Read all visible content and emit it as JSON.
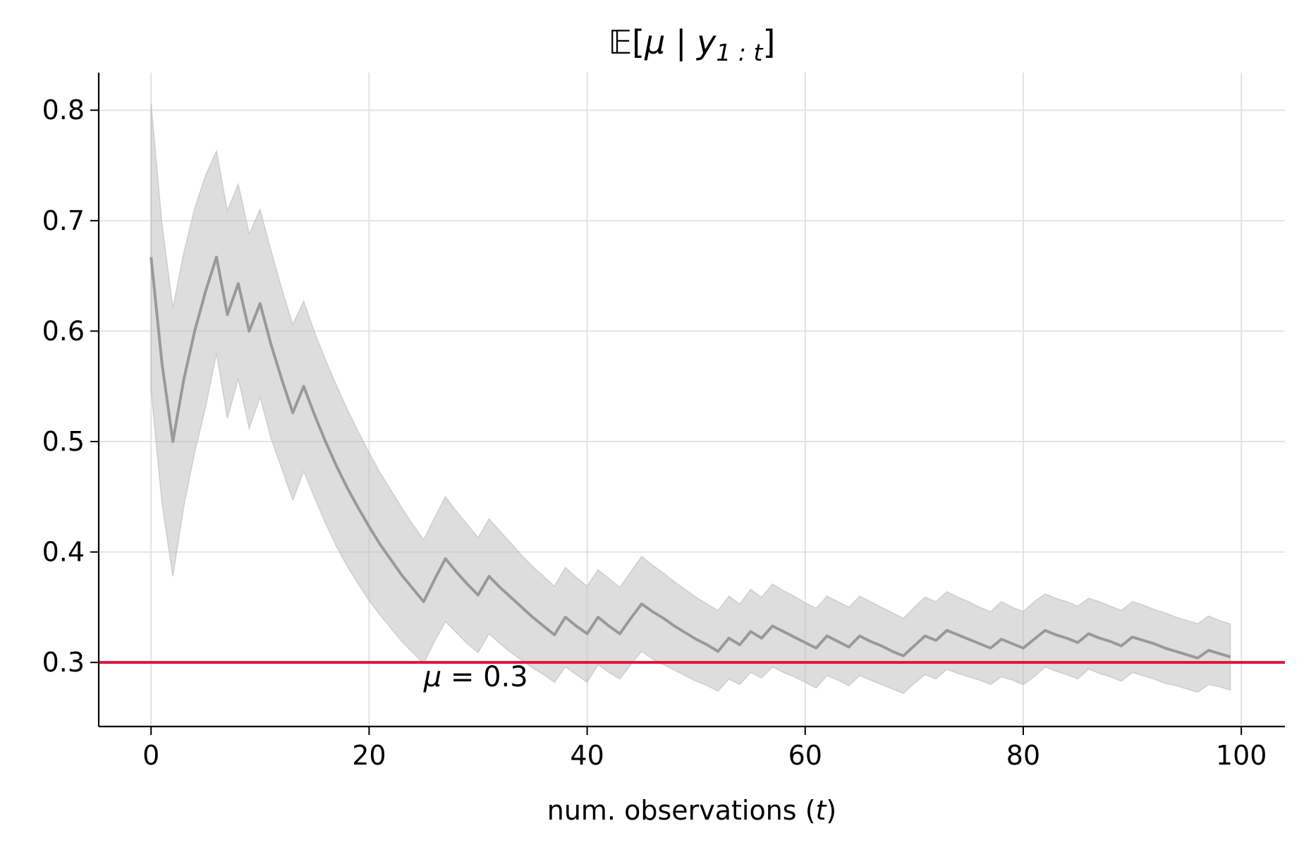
{
  "chart_data": {
    "type": "line",
    "title": {
      "prefix": "𝔼[",
      "mu": "μ",
      "bar": " | ",
      "y": "y",
      "sub": "1 : t",
      "suffix": "]"
    },
    "xlabel": {
      "text": "num. observations (",
      "var": "t",
      "close": ")"
    },
    "ylabel": "",
    "xlim": [
      -4.8,
      104
    ],
    "ylim": [
      0.242,
      0.834
    ],
    "xticks": [
      0,
      20,
      40,
      60,
      80,
      100
    ],
    "yticks": [
      0.3,
      0.4,
      0.5,
      0.6,
      0.7,
      0.8
    ],
    "xtick_labels": [
      "0",
      "20",
      "40",
      "60",
      "80",
      "100"
    ],
    "ytick_labels": [
      "0.3",
      "0.4",
      "0.5",
      "0.6",
      "0.7",
      "0.8"
    ],
    "grid": true,
    "legend": "none",
    "series": [
      {
        "kind": "mean",
        "color": "#999999",
        "x": [
          0,
          1,
          2,
          3,
          4,
          5,
          6,
          7,
          8,
          9,
          10,
          11,
          12,
          13,
          14,
          15,
          16,
          17,
          18,
          19,
          20,
          21,
          22,
          23,
          24,
          25,
          26,
          27,
          28,
          29,
          30,
          31,
          32,
          33,
          34,
          35,
          36,
          37,
          38,
          39,
          40,
          41,
          42,
          43,
          44,
          45,
          46,
          47,
          48,
          49,
          50,
          51,
          52,
          53,
          54,
          55,
          56,
          57,
          58,
          59,
          60,
          61,
          62,
          63,
          64,
          65,
          66,
          67,
          68,
          69,
          70,
          71,
          72,
          73,
          74,
          75,
          76,
          77,
          78,
          79,
          80,
          81,
          82,
          83,
          84,
          85,
          86,
          87,
          88,
          89,
          90,
          91,
          92,
          93,
          94,
          95,
          96,
          97,
          98,
          99
        ],
        "y": [
          0.667,
          0.571,
          0.5,
          0.556,
          0.6,
          0.636,
          0.667,
          0.615,
          0.643,
          0.6,
          0.625,
          0.588,
          0.556,
          0.526,
          0.55,
          0.524,
          0.5,
          0.478,
          0.458,
          0.44,
          0.423,
          0.407,
          0.393,
          0.379,
          0.367,
          0.355,
          0.375,
          0.394,
          0.382,
          0.371,
          0.361,
          0.378,
          0.368,
          0.359,
          0.35,
          0.341,
          0.333,
          0.325,
          0.341,
          0.333,
          0.326,
          0.341,
          0.333,
          0.326,
          0.34,
          0.353,
          0.346,
          0.34,
          0.333,
          0.327,
          0.321,
          0.316,
          0.31,
          0.322,
          0.316,
          0.328,
          0.322,
          0.333,
          0.328,
          0.323,
          0.318,
          0.313,
          0.324,
          0.319,
          0.314,
          0.324,
          0.319,
          0.315,
          0.31,
          0.306,
          0.315,
          0.324,
          0.32,
          0.329,
          0.325,
          0.321,
          0.317,
          0.313,
          0.321,
          0.317,
          0.313,
          0.321,
          0.329,
          0.325,
          0.322,
          0.318,
          0.326,
          0.322,
          0.319,
          0.315,
          0.323,
          0.32,
          0.317,
          0.313,
          0.31,
          0.307,
          0.304,
          0.311,
          0.308,
          0.305
        ]
      },
      {
        "kind": "band",
        "color": "#bbbbbb",
        "x": [
          0,
          1,
          2,
          3,
          4,
          5,
          6,
          7,
          8,
          9,
          10,
          11,
          12,
          13,
          14,
          15,
          16,
          17,
          18,
          19,
          20,
          21,
          22,
          23,
          24,
          25,
          26,
          27,
          28,
          29,
          30,
          31,
          32,
          33,
          34,
          35,
          36,
          37,
          38,
          39,
          40,
          41,
          42,
          43,
          44,
          45,
          46,
          47,
          48,
          49,
          50,
          51,
          52,
          53,
          54,
          55,
          56,
          57,
          58,
          59,
          60,
          61,
          62,
          63,
          64,
          65,
          66,
          67,
          68,
          69,
          70,
          71,
          72,
          73,
          74,
          75,
          76,
          77,
          78,
          79,
          80,
          81,
          82,
          83,
          84,
          85,
          86,
          87,
          88,
          89,
          90,
          91,
          92,
          93,
          94,
          95,
          96,
          97,
          98,
          99
        ],
        "upper": [
          0.806,
          0.697,
          0.621,
          0.671,
          0.711,
          0.741,
          0.763,
          0.709,
          0.733,
          0.688,
          0.71,
          0.673,
          0.638,
          0.606,
          0.627,
          0.599,
          0.574,
          0.551,
          0.529,
          0.509,
          0.49,
          0.472,
          0.456,
          0.44,
          0.425,
          0.411,
          0.431,
          0.45,
          0.437,
          0.425,
          0.413,
          0.43,
          0.419,
          0.408,
          0.397,
          0.387,
          0.378,
          0.369,
          0.386,
          0.377,
          0.369,
          0.384,
          0.376,
          0.368,
          0.382,
          0.396,
          0.388,
          0.381,
          0.373,
          0.366,
          0.359,
          0.353,
          0.347,
          0.36,
          0.353,
          0.366,
          0.359,
          0.371,
          0.365,
          0.36,
          0.354,
          0.349,
          0.36,
          0.355,
          0.35,
          0.36,
          0.355,
          0.35,
          0.345,
          0.34,
          0.35,
          0.359,
          0.355,
          0.364,
          0.359,
          0.355,
          0.35,
          0.346,
          0.355,
          0.35,
          0.346,
          0.355,
          0.362,
          0.358,
          0.355,
          0.351,
          0.358,
          0.355,
          0.351,
          0.347,
          0.355,
          0.352,
          0.348,
          0.345,
          0.341,
          0.338,
          0.335,
          0.342,
          0.338,
          0.335
        ],
        "lower": [
          0.547,
          0.444,
          0.378,
          0.441,
          0.49,
          0.531,
          0.58,
          0.521,
          0.557,
          0.512,
          0.54,
          0.503,
          0.475,
          0.447,
          0.473,
          0.449,
          0.426,
          0.405,
          0.387,
          0.371,
          0.356,
          0.343,
          0.331,
          0.319,
          0.309,
          0.299,
          0.319,
          0.337,
          0.327,
          0.317,
          0.309,
          0.326,
          0.317,
          0.309,
          0.302,
          0.295,
          0.289,
          0.282,
          0.296,
          0.289,
          0.282,
          0.298,
          0.291,
          0.285,
          0.298,
          0.31,
          0.303,
          0.298,
          0.293,
          0.288,
          0.283,
          0.279,
          0.274,
          0.285,
          0.28,
          0.291,
          0.286,
          0.296,
          0.291,
          0.287,
          0.282,
          0.277,
          0.288,
          0.284,
          0.279,
          0.288,
          0.284,
          0.28,
          0.276,
          0.272,
          0.281,
          0.289,
          0.285,
          0.294,
          0.29,
          0.287,
          0.284,
          0.28,
          0.287,
          0.284,
          0.28,
          0.287,
          0.296,
          0.292,
          0.289,
          0.285,
          0.294,
          0.29,
          0.287,
          0.283,
          0.291,
          0.288,
          0.285,
          0.281,
          0.279,
          0.276,
          0.273,
          0.28,
          0.278,
          0.275
        ]
      }
    ],
    "hline": {
      "y": 0.3,
      "color": "#dc143c",
      "label_prefix": "μ",
      "label_eq": " = 0.3",
      "label_x": 25
    }
  }
}
